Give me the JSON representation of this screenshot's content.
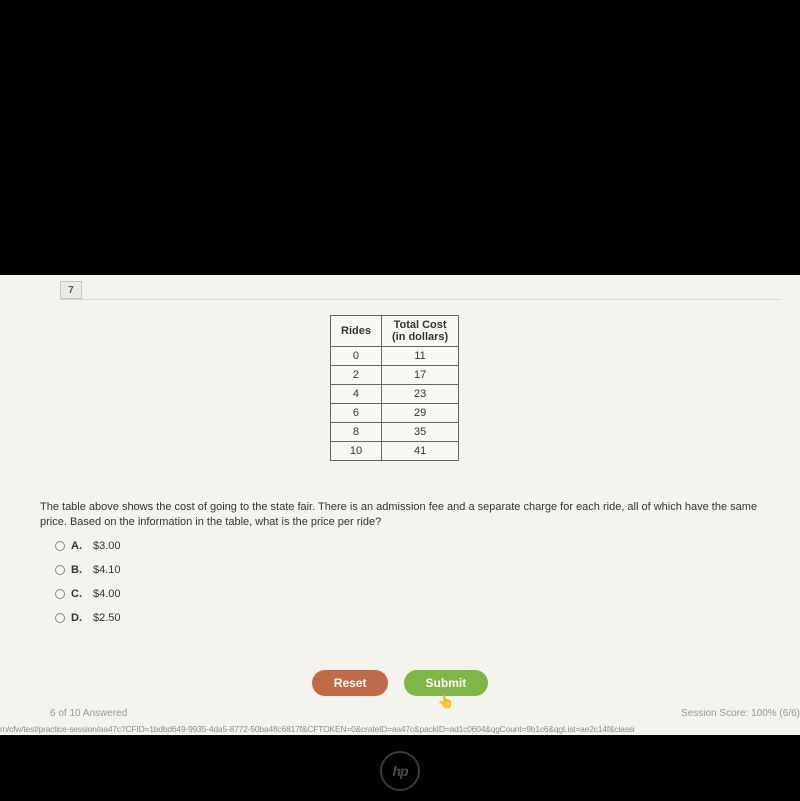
{
  "question_number": "7",
  "table": {
    "headers": [
      "Rides",
      "Total Cost\n(in dollars)"
    ],
    "rows": [
      [
        "0",
        "11"
      ],
      [
        "2",
        "17"
      ],
      [
        "4",
        "23"
      ],
      [
        "6",
        "29"
      ],
      [
        "8",
        "35"
      ],
      [
        "10",
        "41"
      ]
    ]
  },
  "question_text": "The table above shows the cost of going to the state fair. There is an admission fee and a separate charge for each ride, all of which have the same price. Based on the information in the table, what is the price per ride?",
  "options": [
    {
      "letter": "A.",
      "text": "$3.00"
    },
    {
      "letter": "B.",
      "text": "$4.10"
    },
    {
      "letter": "C.",
      "text": "$4.00"
    },
    {
      "letter": "D.",
      "text": "$2.50"
    }
  ],
  "buttons": {
    "reset": "Reset",
    "submit": "Submit"
  },
  "footer": {
    "progress": "6 of 10 Answered",
    "score": "Session Score: 100% (6/6)",
    "url": "m/cfw/test/practice-session/aa47c?CFID=1bdbd649-9935-4da5-8772-50ba48c6817f&CFTOKEN=0&crateID=aa47c&packID=ad1c0604&qgCount=9b1c6&qgList=ae2c14f&classi"
  },
  "colors": {
    "page_bg": "#000000",
    "content_bg": "#f4f3ee",
    "reset_btn": "#c16a47",
    "submit_btn": "#7fb648",
    "border": "#666666"
  }
}
